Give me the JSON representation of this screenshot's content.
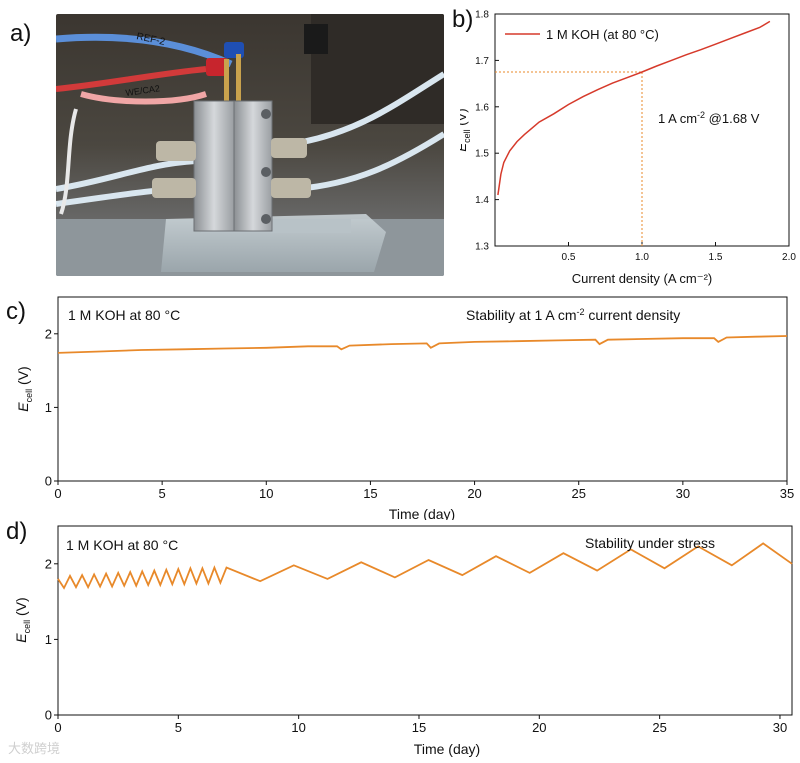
{
  "panel_labels": [
    "a)",
    "b)",
    "c)",
    "d)"
  ],
  "photo": {
    "cable_labels": [
      "REF-2",
      "WE/CA2"
    ]
  },
  "colors": {
    "polarization_line": "#d63a2b",
    "stability_line": "#e8892a",
    "reference_dash": "#e8892a",
    "axis": "#111111"
  },
  "watermark": "大数跨境",
  "chart_data": [
    {
      "id": "b",
      "type": "line",
      "xlabel": "Current density (A cm⁻²)",
      "ylabel": "E_cell (V)",
      "ylabel_main": "E",
      "ylabel_sub": "cell",
      "ylabel_unit": " (V)",
      "xlim": [
        0,
        2.0
      ],
      "ylim": [
        1.3,
        1.8
      ],
      "xticks": [
        "0.5",
        "1.0",
        "1.5",
        "2.0"
      ],
      "xtick_values": [
        0.5,
        1.0,
        1.5,
        2.0
      ],
      "yticks": [
        "1.3",
        "1.4",
        "1.5",
        "1.6",
        "1.7",
        "1.8"
      ],
      "ytick_values": [
        1.3,
        1.4,
        1.5,
        1.6,
        1.7,
        1.8
      ],
      "legend_position": "top-left",
      "series": [
        {
          "name": "1 M KOH (at 80 °C)",
          "x": [
            0.02,
            0.04,
            0.06,
            0.1,
            0.15,
            0.2,
            0.3,
            0.4,
            0.5,
            0.6,
            0.7,
            0.8,
            0.9,
            1.0,
            1.1,
            1.2,
            1.3,
            1.4,
            1.5,
            1.6,
            1.7,
            1.8,
            1.87
          ],
          "y": [
            1.41,
            1.455,
            1.48,
            1.505,
            1.525,
            1.54,
            1.567,
            1.585,
            1.605,
            1.622,
            1.637,
            1.651,
            1.663,
            1.675,
            1.688,
            1.7,
            1.712,
            1.723,
            1.735,
            1.747,
            1.759,
            1.771,
            1.784
          ]
        }
      ],
      "annotation": {
        "text_main": "1 A cm",
        "text_sup": "-2",
        "text_rest": " @1.68 V",
        "ref_x": 1.0,
        "ref_y": 1.675
      }
    },
    {
      "id": "c",
      "type": "line",
      "xlabel": "Time (day)",
      "ylabel": "E_cell (V)",
      "ylabel_main": "E",
      "ylabel_sub": "cell",
      "ylabel_unit": " (V)",
      "xlim": [
        0,
        35
      ],
      "ylim": [
        0,
        2.5
      ],
      "xticks": [
        "0",
        "5",
        "10",
        "15",
        "20",
        "25",
        "30",
        "35"
      ],
      "xtick_values": [
        0,
        5,
        10,
        15,
        20,
        25,
        30,
        35
      ],
      "yticks": [
        "0",
        "1",
        "2"
      ],
      "ytick_values": [
        0,
        1,
        2
      ],
      "top_left_text": "1 M KOH at 80 °C",
      "title_main": "Stability at 1 A cm",
      "title_sup": "-2",
      "title_rest": " current density",
      "series": [
        {
          "name": "",
          "x": [
            0,
            2,
            4,
            6,
            8,
            10,
            12,
            13.4,
            13.6,
            14,
            16,
            17.7,
            17.9,
            18.3,
            20,
            22,
            24,
            25.8,
            26.0,
            26.4,
            28,
            30,
            31.5,
            31.7,
            32.1,
            33.5,
            35
          ],
          "y": [
            1.74,
            1.76,
            1.78,
            1.79,
            1.8,
            1.81,
            1.83,
            1.83,
            1.79,
            1.84,
            1.86,
            1.87,
            1.81,
            1.87,
            1.89,
            1.9,
            1.91,
            1.92,
            1.86,
            1.92,
            1.93,
            1.94,
            1.94,
            1.89,
            1.95,
            1.96,
            1.97
          ]
        }
      ]
    },
    {
      "id": "d",
      "type": "line",
      "xlabel": "Time (day)",
      "ylabel": "E_cell (V)",
      "ylabel_main": "E",
      "ylabel_sub": "cell",
      "ylabel_unit": " (V)",
      "xlim": [
        0,
        30.5
      ],
      "ylim": [
        0,
        2.5
      ],
      "xticks": [
        "0",
        "5",
        "10",
        "15",
        "20",
        "25",
        "30"
      ],
      "xtick_values": [
        0,
        5,
        10,
        15,
        20,
        25,
        30
      ],
      "yticks": [
        "0",
        "1",
        "2"
      ],
      "ytick_values": [
        0,
        1,
        2
      ],
      "top_left_text": "1 M KOH at 80 °C",
      "title_main": "Stability under stress",
      "series": [
        {
          "name": "",
          "x": [
            0,
            0.25,
            0.5,
            0.75,
            1.0,
            1.25,
            1.5,
            1.75,
            2.0,
            2.25,
            2.5,
            2.75,
            3.0,
            3.25,
            3.5,
            3.75,
            4.0,
            4.25,
            4.5,
            4.75,
            5.0,
            5.25,
            5.5,
            5.75,
            6.0,
            6.25,
            6.5,
            6.75,
            7.0,
            8.4,
            9.8,
            11.2,
            12.6,
            14.0,
            15.4,
            16.8,
            18.2,
            19.6,
            21.0,
            22.4,
            23.8,
            25.2,
            26.6,
            28.0,
            29.3,
            30.5
          ],
          "y": [
            1.8,
            1.68,
            1.84,
            1.69,
            1.85,
            1.69,
            1.86,
            1.7,
            1.87,
            1.7,
            1.88,
            1.71,
            1.89,
            1.71,
            1.9,
            1.72,
            1.91,
            1.72,
            1.92,
            1.73,
            1.93,
            1.73,
            1.94,
            1.74,
            1.94,
            1.74,
            1.95,
            1.75,
            1.95,
            1.77,
            1.98,
            1.8,
            2.02,
            1.82,
            2.05,
            1.85,
            2.1,
            1.88,
            2.14,
            1.91,
            2.19,
            1.94,
            2.23,
            1.98,
            2.27,
            2.0
          ]
        }
      ]
    }
  ]
}
